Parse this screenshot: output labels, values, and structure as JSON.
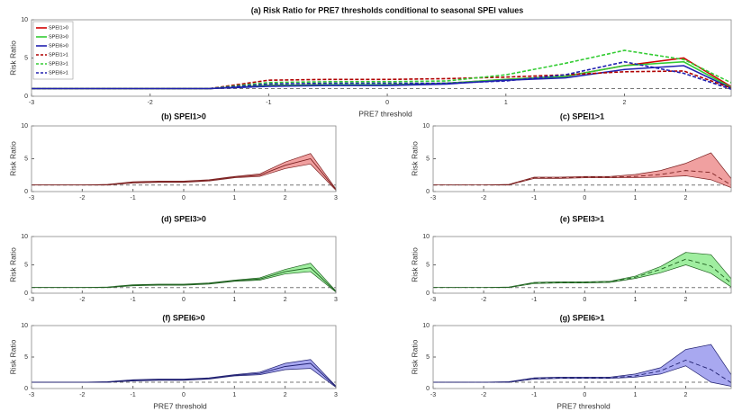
{
  "chart_data": [
    {
      "type": "line",
      "title": "(a) Risk Ratio for PRE7 thresholds conditional to seasonal SPEI values",
      "xlabel": "PRE7 threshold",
      "ylabel": "Risk Ratio",
      "xlim": [
        -3,
        2.9
      ],
      "xticks": [
        -3,
        -2,
        -1,
        0,
        1,
        2
      ],
      "ylim": [
        0,
        10
      ],
      "yticks": [
        0,
        5,
        10
      ],
      "reference_line": 1,
      "legend": "upper left",
      "x": [
        -3,
        -2.5,
        -2,
        -1.5,
        -1,
        -0.5,
        0,
        0.5,
        1,
        1.5,
        2,
        2.5,
        3
      ],
      "series": [
        {
          "name": "SPEI1>0",
          "color": "#d00000",
          "dash": false,
          "values": [
            1,
            1,
            1,
            1,
            1.4,
            1.5,
            1.5,
            1.7,
            2.2,
            2.6,
            4,
            5,
            0.3
          ]
        },
        {
          "name": "SPEI3>0",
          "color": "#33cc33",
          "dash": false,
          "values": [
            1,
            1,
            1,
            1,
            1.4,
            1.5,
            1.5,
            1.7,
            2.2,
            2.6,
            4,
            4.5,
            0.3
          ]
        },
        {
          "name": "SPEI6>0",
          "color": "#2020b0",
          "dash": false,
          "values": [
            1,
            1,
            1,
            1,
            1.3,
            1.4,
            1.4,
            1.6,
            2.1,
            2.4,
            3.5,
            4,
            0.3
          ]
        },
        {
          "name": "SPEI1>1",
          "color": "#b00000",
          "dash": true,
          "values": [
            1,
            1,
            1,
            1,
            2.1,
            2.2,
            2.2,
            2.3,
            2.5,
            2.8,
            3.2,
            3.3,
            0.5
          ]
        },
        {
          "name": "SPEI3>1",
          "color": "#33cc33",
          "dash": true,
          "values": [
            1,
            1,
            1,
            1,
            1.8,
            1.9,
            1.9,
            2,
            2.8,
            4.3,
            6,
            4.8,
            1
          ]
        },
        {
          "name": "SPEI6>1",
          "color": "#2020b0",
          "dash": true,
          "values": [
            1,
            1,
            1,
            1,
            1.6,
            1.7,
            1.7,
            1.7,
            2,
            2.8,
            4.5,
            3,
            0.4
          ]
        }
      ]
    },
    {
      "type": "band",
      "title": "(b) SPEI1>0",
      "ylabel": "Risk Ratio",
      "xlim": [
        -3,
        3
      ],
      "xticks": [
        -3,
        -2,
        -1,
        0,
        1,
        2,
        3
      ],
      "ylim": [
        0,
        10
      ],
      "yticks": [
        0,
        5,
        10
      ],
      "reference_line": 1,
      "fill": "#f0a0a0",
      "line_color": "#7a2020",
      "dash": false,
      "x": [
        -3,
        -2.5,
        -2,
        -1.5,
        -1,
        -0.5,
        0,
        0.5,
        1,
        1.5,
        2,
        2.5,
        3
      ],
      "mean": [
        1,
        1,
        1,
        1,
        1.4,
        1.5,
        1.5,
        1.7,
        2.2,
        2.5,
        4,
        5,
        0.3
      ],
      "lower": [
        1,
        1,
        1,
        1,
        1.3,
        1.4,
        1.4,
        1.6,
        2.1,
        2.3,
        3.5,
        4.2,
        0.2
      ],
      "upper": [
        1,
        1,
        1,
        1.1,
        1.5,
        1.6,
        1.6,
        1.8,
        2.3,
        2.7,
        4.5,
        5.8,
        0.4
      ]
    },
    {
      "type": "band",
      "title": "(c) SPEI1>1",
      "ylabel": "Risk Ratio",
      "xlim": [
        -3,
        2.9
      ],
      "xticks": [
        -3,
        -2,
        -1,
        0,
        1,
        2
      ],
      "ylim": [
        0,
        10
      ],
      "yticks": [
        0,
        5,
        10
      ],
      "reference_line": 1,
      "fill": "#f0a0a0",
      "line_color": "#7a2020",
      "dash": true,
      "x": [
        -3,
        -2.5,
        -2,
        -1.5,
        -1,
        -0.5,
        0,
        0.5,
        1,
        1.5,
        2,
        2.5,
        3
      ],
      "mean": [
        1,
        1,
        1,
        1,
        2.1,
        2.1,
        2.2,
        2.2,
        2.3,
        2.6,
        3.2,
        2.9,
        0.5
      ],
      "lower": [
        1,
        1,
        1,
        1,
        2,
        2,
        2.1,
        2.1,
        2.1,
        2.2,
        2.4,
        1.8,
        0.3
      ],
      "upper": [
        1,
        1,
        1,
        1.1,
        2.2,
        2.2,
        2.3,
        2.3,
        2.6,
        3.2,
        4.3,
        5.9,
        1
      ]
    },
    {
      "type": "band",
      "title": "(d) SPEI3>0",
      "ylabel": "Risk Ratio",
      "xlim": [
        -3,
        3
      ],
      "xticks": [
        -3,
        -2,
        -1,
        0,
        1,
        2,
        3
      ],
      "ylim": [
        0,
        10
      ],
      "yticks": [
        0,
        5,
        10
      ],
      "reference_line": 1,
      "fill": "#a0eea0",
      "line_color": "#206020",
      "dash": false,
      "x": [
        -3,
        -2.5,
        -2,
        -1.5,
        -1,
        -0.5,
        0,
        0.5,
        1,
        1.5,
        2,
        2.5,
        3
      ],
      "mean": [
        1,
        1,
        1,
        1,
        1.4,
        1.5,
        1.5,
        1.7,
        2.2,
        2.5,
        3.8,
        4.5,
        0.3
      ],
      "lower": [
        1,
        1,
        1,
        1,
        1.3,
        1.4,
        1.4,
        1.6,
        2.1,
        2.3,
        3.4,
        3.8,
        0.2
      ],
      "upper": [
        1,
        1,
        1,
        1.1,
        1.5,
        1.6,
        1.6,
        1.8,
        2.3,
        2.7,
        4.2,
        5.3,
        0.4
      ]
    },
    {
      "type": "band",
      "title": "(e) SPEI3>1",
      "ylabel": "Risk Ratio",
      "xlim": [
        -3,
        2.9
      ],
      "xticks": [
        -3,
        -2,
        -1,
        0,
        1,
        2
      ],
      "ylim": [
        0,
        10
      ],
      "yticks": [
        0,
        5,
        10
      ],
      "reference_line": 1,
      "fill": "#a0eea0",
      "line_color": "#206020",
      "dash": true,
      "x": [
        -3,
        -2.5,
        -2,
        -1.5,
        -1,
        -0.5,
        0,
        0.5,
        1,
        1.5,
        2,
        2.5,
        3
      ],
      "mean": [
        1,
        1,
        1,
        1,
        1.8,
        1.9,
        1.9,
        2,
        2.8,
        4.2,
        6,
        4.8,
        1
      ],
      "lower": [
        1,
        1,
        1,
        1,
        1.7,
        1.8,
        1.8,
        1.9,
        2.6,
        3.6,
        5,
        3.5,
        0.5
      ],
      "upper": [
        1,
        1,
        1,
        1.1,
        1.9,
        2,
        2,
        2.1,
        3,
        4.7,
        7.2,
        6.8,
        1.5
      ]
    },
    {
      "type": "band",
      "title": "(f) SPEI6>0",
      "ylabel": "Risk Ratio",
      "xlabel": "PRE7 threshold",
      "xlim": [
        -3,
        3
      ],
      "xticks": [
        -3,
        -2,
        -1,
        0,
        1,
        2,
        3
      ],
      "ylim": [
        0,
        10
      ],
      "yticks": [
        0,
        5,
        10
      ],
      "reference_line": 1,
      "fill": "#a8a8f0",
      "line_color": "#202070",
      "dash": false,
      "x": [
        -3,
        -2.5,
        -2,
        -1.5,
        -1,
        -0.5,
        0,
        0.5,
        1,
        1.5,
        2,
        2.5,
        3
      ],
      "mean": [
        1,
        1,
        1,
        1,
        1.3,
        1.4,
        1.4,
        1.6,
        2.1,
        2.4,
        3.5,
        4,
        0.3
      ],
      "lower": [
        1,
        1,
        1,
        1,
        1.2,
        1.3,
        1.3,
        1.5,
        2,
        2.2,
        3,
        3.2,
        0.2
      ],
      "upper": [
        1,
        1,
        1,
        1.1,
        1.4,
        1.5,
        1.5,
        1.7,
        2.2,
        2.6,
        4,
        4.6,
        0.4
      ]
    },
    {
      "type": "band",
      "title": "(g) SPEI6>1",
      "ylabel": "Risk Ratio",
      "xlabel": "PRE7 threshold",
      "xlim": [
        -3,
        2.9
      ],
      "xticks": [
        -3,
        -2,
        -1,
        0,
        1,
        2
      ],
      "ylim": [
        0,
        10
      ],
      "yticks": [
        0,
        5,
        10
      ],
      "reference_line": 1,
      "fill": "#a8a8f0",
      "line_color": "#202070",
      "dash": true,
      "x": [
        -3,
        -2.5,
        -2,
        -1.5,
        -1,
        -0.5,
        0,
        0.5,
        1,
        1.5,
        2,
        2.5,
        3
      ],
      "mean": [
        1,
        1,
        1,
        1,
        1.6,
        1.7,
        1.7,
        1.7,
        2,
        2.8,
        4.5,
        3,
        0.4
      ],
      "lower": [
        1,
        1,
        1,
        1,
        1.5,
        1.6,
        1.6,
        1.6,
        1.8,
        2.3,
        3.6,
        1,
        0.2
      ],
      "upper": [
        1,
        1,
        1,
        1.1,
        1.7,
        1.8,
        1.8,
        1.8,
        2.3,
        3.3,
        6.2,
        7,
        1
      ]
    }
  ]
}
